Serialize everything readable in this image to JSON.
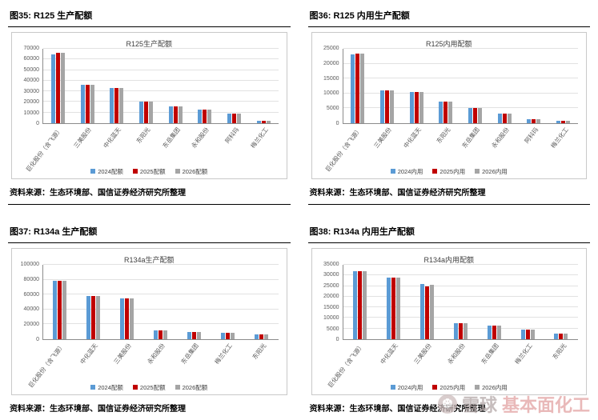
{
  "page": {
    "background": "#ffffff"
  },
  "watermark": {
    "brand": "雪球",
    "text": "基本面化工",
    "brand_color": "#b3a7a7",
    "text_color": "#e2a2a2"
  },
  "figures": [
    {
      "heading": "图35: R125 生产配额",
      "source": "资料来源：生态环境部、国信证券经济研究所整理"
    },
    {
      "heading": "图36: R125 内用生产配额",
      "source": "资料来源：生态环境部、国信证券经济研究所整理"
    },
    {
      "heading": "图37: R134a 生产配额",
      "source": "资料来源：生态环境部、国信证券经济研究所整理"
    },
    {
      "heading": "图38: R134a 内用生产配额",
      "source": "资料来源：生态环境部、国信证券经济研究所整理"
    }
  ],
  "chart_data": [
    {
      "type": "bar",
      "title": "R125生产配额",
      "categories": [
        "巨化股份（含飞源）",
        "三美股份",
        "中化蓝天",
        "东阳光",
        "东岳集团",
        "永和股份",
        "阿科玛",
        "梅兰化工"
      ],
      "series": [
        {
          "name": "2024配额",
          "color": "#5B9BD5",
          "values": [
            65000,
            36000,
            33000,
            20000,
            15500,
            12500,
            9000,
            2000
          ]
        },
        {
          "name": "2025配额",
          "color": "#C00000",
          "values": [
            66000,
            36000,
            33000,
            20000,
            15500,
            12500,
            9000,
            2000
          ]
        },
        {
          "name": "2026配额",
          "color": "#A5A5A5",
          "values": [
            66000,
            36000,
            33000,
            20000,
            15500,
            12500,
            9000,
            2000
          ]
        }
      ],
      "xlabel": "",
      "ylabel": "",
      "ylim": [
        0,
        70000
      ],
      "ystep": 10000,
      "grid": true,
      "legend_position": "bottom"
    },
    {
      "type": "bar",
      "title": "R125内用配额",
      "categories": [
        "巨化股份（含飞源）",
        "三美股份",
        "中化蓝天",
        "东阳光",
        "东岳集团",
        "永和股份",
        "阿科玛",
        "梅兰化工"
      ],
      "series": [
        {
          "name": "2024内用",
          "color": "#5B9BD5",
          "values": [
            23000,
            11000,
            10500,
            7300,
            5200,
            3200,
            1300,
            700
          ]
        },
        {
          "name": "2025内用",
          "color": "#C00000",
          "values": [
            23500,
            11000,
            10500,
            7300,
            5200,
            3200,
            1300,
            700
          ]
        },
        {
          "name": "2026内用",
          "color": "#A5A5A5",
          "values": [
            23500,
            11000,
            10500,
            7300,
            5200,
            3200,
            1300,
            700
          ]
        }
      ],
      "xlabel": "",
      "ylabel": "",
      "ylim": [
        0,
        25000
      ],
      "ystep": 5000,
      "grid": true,
      "legend_position": "bottom"
    },
    {
      "type": "bar",
      "title": "R134a生产配额",
      "categories": [
        "巨化股份（含飞源）",
        "中化蓝天",
        "三美股份",
        "永和股份",
        "东岳集团",
        "梅兰化工",
        "东阳光"
      ],
      "series": [
        {
          "name": "2024配额",
          "color": "#5B9BD5",
          "values": [
            78000,
            58000,
            55000,
            12000,
            9500,
            8500,
            6000
          ]
        },
        {
          "name": "2025配额",
          "color": "#C00000",
          "values": [
            78000,
            58000,
            55000,
            12000,
            9500,
            8500,
            6000
          ]
        },
        {
          "name": "2026配额",
          "color": "#A5A5A5",
          "values": [
            78000,
            58000,
            55000,
            12000,
            9500,
            8500,
            6000
          ]
        }
      ],
      "xlabel": "",
      "ylabel": "",
      "ylim": [
        0,
        100000
      ],
      "ystep": 20000,
      "grid": true,
      "legend_position": "bottom"
    },
    {
      "type": "bar",
      "title": "R134a内用配额",
      "categories": [
        "巨化股份（含飞源）",
        "中化蓝天",
        "三美股份",
        "永和股份",
        "东岳集团",
        "梅兰化工",
        "东阳光"
      ],
      "series": [
        {
          "name": "2024内用",
          "color": "#5B9BD5",
          "values": [
            32000,
            29000,
            26000,
            7500,
            6500,
            4500,
            2500
          ]
        },
        {
          "name": "2025内用",
          "color": "#C00000",
          "values": [
            32000,
            29000,
            25000,
            7500,
            6500,
            4500,
            2500
          ]
        },
        {
          "name": "2026内用",
          "color": "#A5A5A5",
          "values": [
            32000,
            29000,
            25500,
            7500,
            6500,
            4500,
            2500
          ]
        }
      ],
      "xlabel": "",
      "ylabel": "",
      "ylim": [
        0,
        35000
      ],
      "ystep": 5000,
      "grid": true,
      "legend_position": "bottom"
    }
  ]
}
